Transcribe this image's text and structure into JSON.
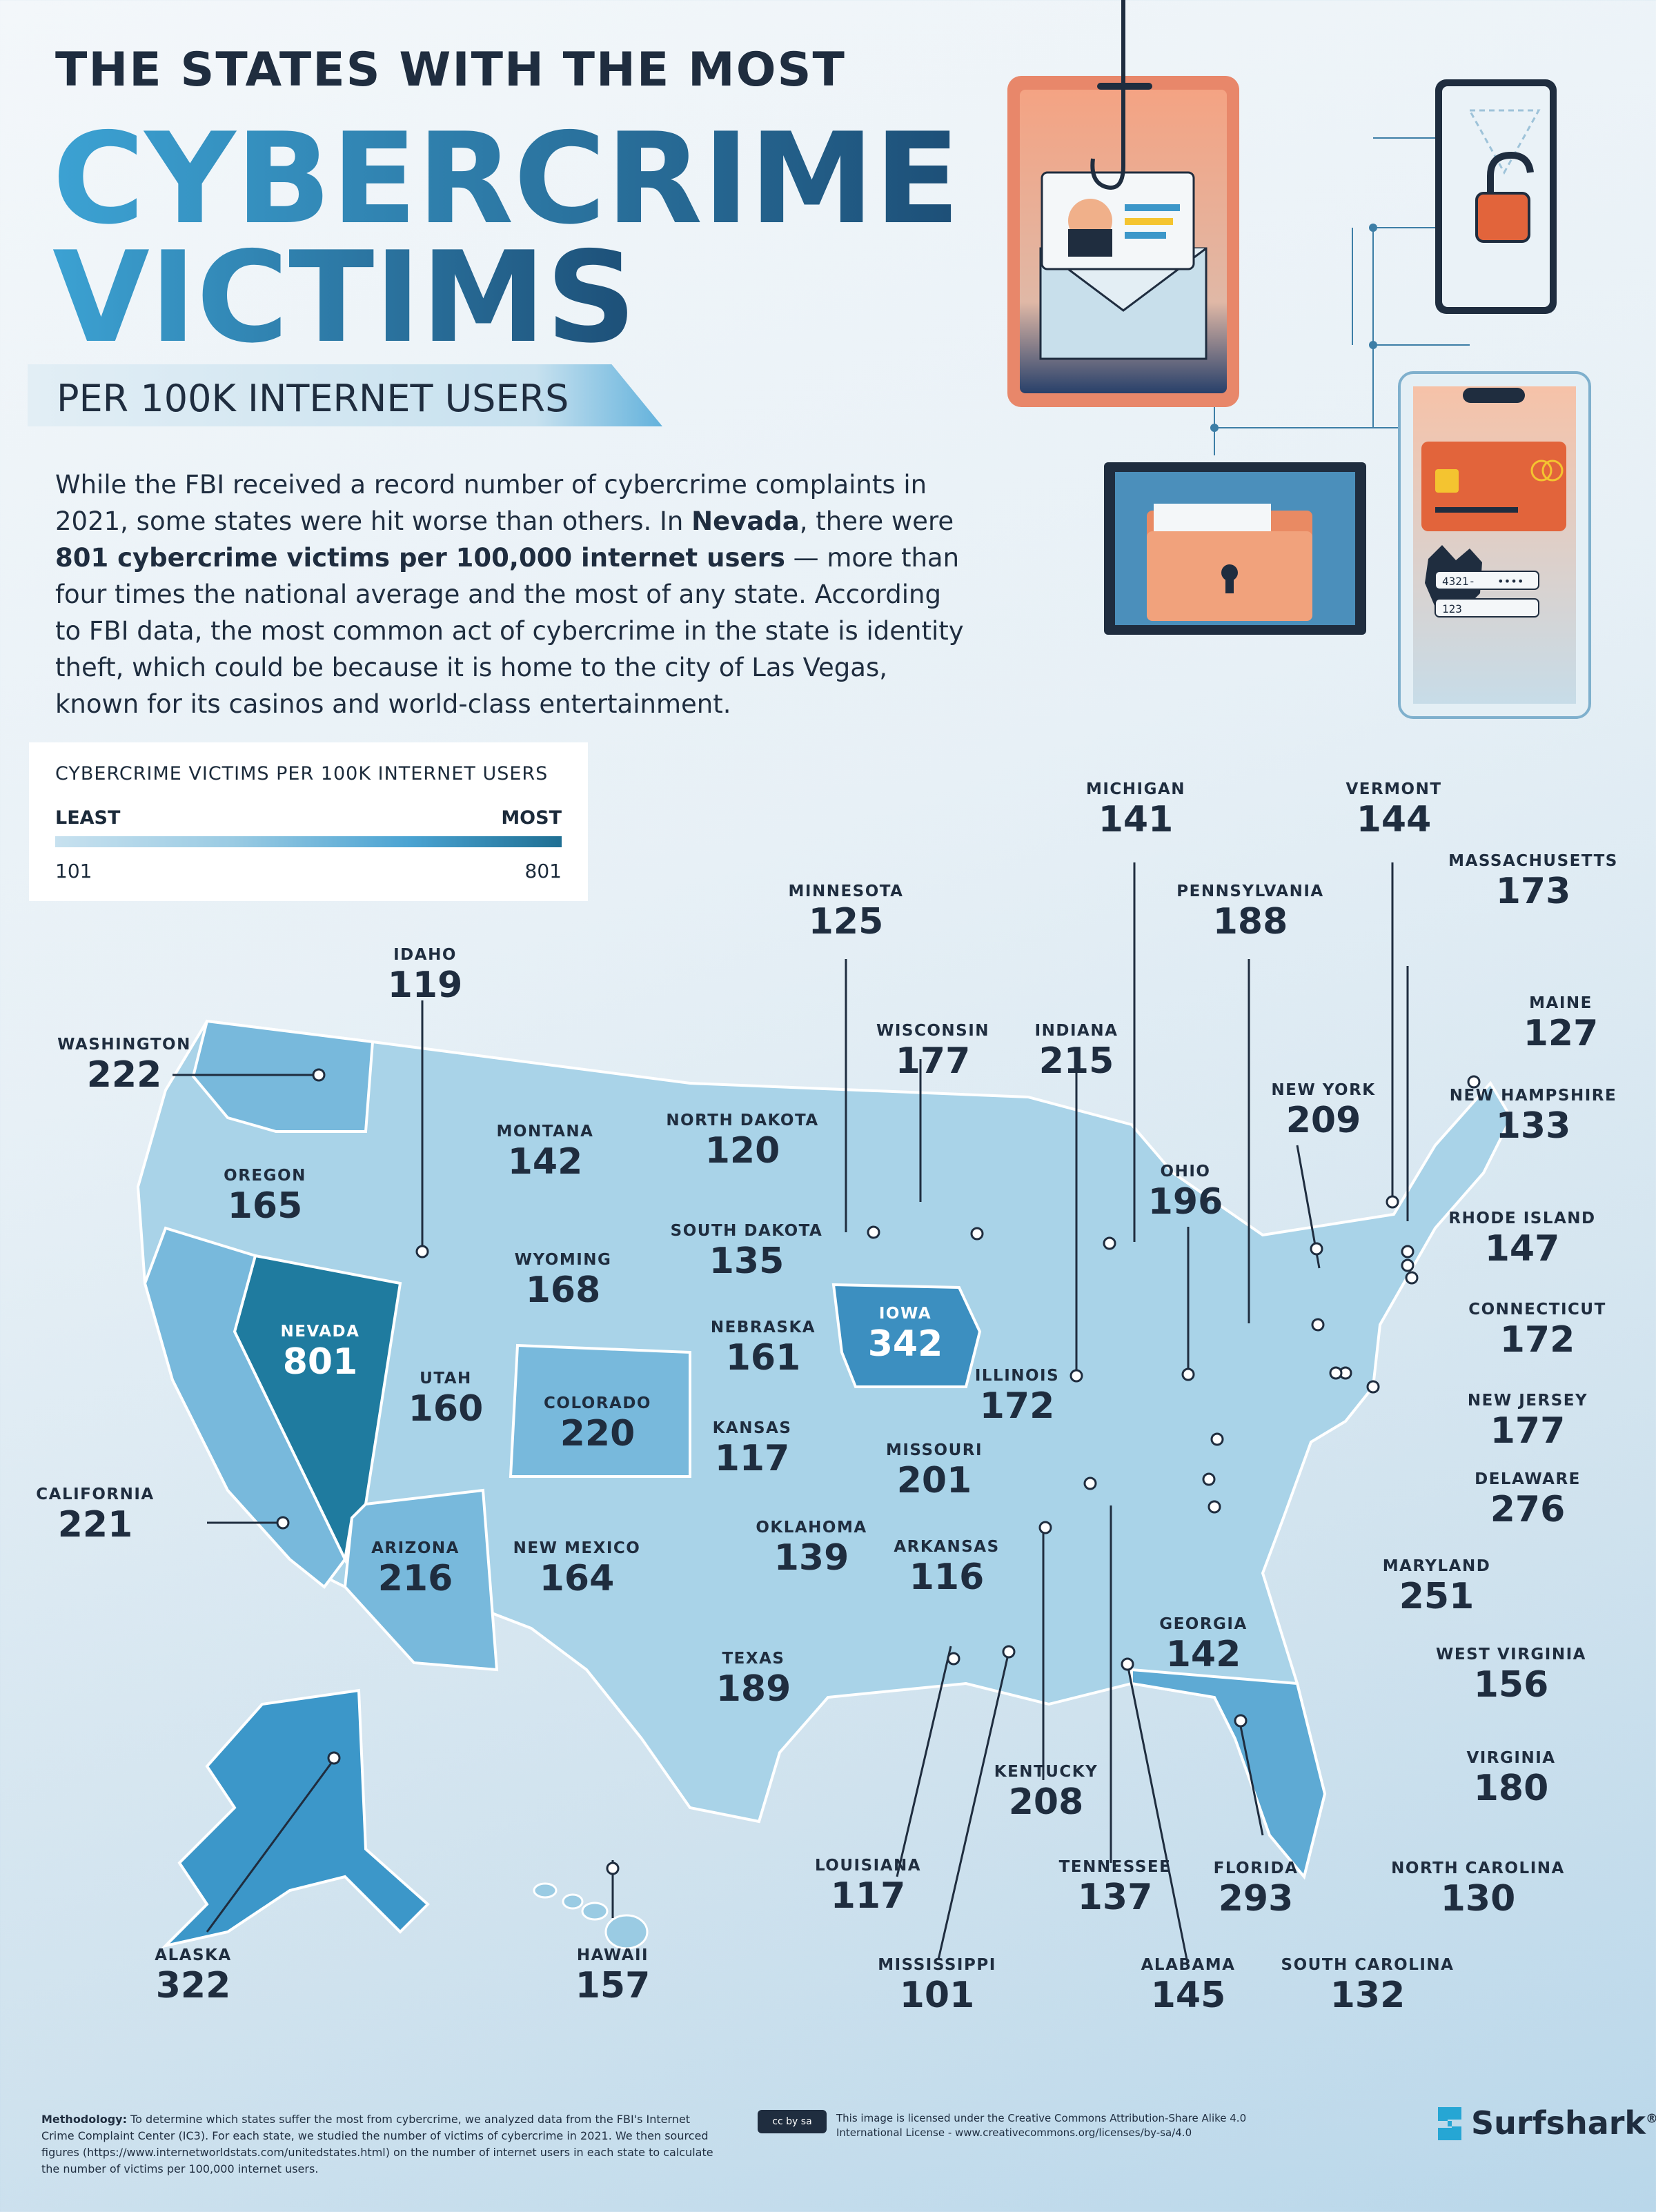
{
  "header": {
    "kicker": "THE STATES WITH THE MOST",
    "title_line1": "CYBERCRIME",
    "title_line2": "VICTIMS",
    "subtitle": "PER 100K INTERNET USERS"
  },
  "intro": {
    "part1": "While the FBI received a record number of cybercrime complaints in 2021, some states were hit worse than others. In ",
    "bold1": "Nevada",
    "part2": ", there were ",
    "bold2": "801 cybercrime victims per 100,000 internet users",
    "part3": " — more than four times the national average and the most of any state. According to FBI data, the most common act of cybercrime in the state is identity theft, which could be because it is home to the city of Las Vegas, known for its casinos and world-class entertainment."
  },
  "legend": {
    "title": "CYBERCRIME VICTIMS PER 100K INTERNET USERS",
    "least_label": "LEAST",
    "most_label": "MOST",
    "min": "101",
    "max": "801",
    "colors": [
      "#c7e1ef",
      "#9acbe3",
      "#4aa3d2",
      "#1f6f93"
    ]
  },
  "illustration": {
    "card_number": "4321-",
    "card_dots": "••••",
    "pin": "123"
  },
  "states": [
    {
      "id": "washington",
      "name": "WASHINGTON",
      "value": "222"
    },
    {
      "id": "oregon",
      "name": "OREGON",
      "value": "165"
    },
    {
      "id": "california",
      "name": "CALIFORNIA",
      "value": "221"
    },
    {
      "id": "nevada",
      "name": "NEVADA",
      "value": "801"
    },
    {
      "id": "idaho",
      "name": "IDAHO",
      "value": "119"
    },
    {
      "id": "montana",
      "name": "MONTANA",
      "value": "142"
    },
    {
      "id": "wyoming",
      "name": "WYOMING",
      "value": "168"
    },
    {
      "id": "utah",
      "name": "UTAH",
      "value": "160"
    },
    {
      "id": "colorado",
      "name": "COLORADO",
      "value": "220"
    },
    {
      "id": "arizona",
      "name": "ARIZONA",
      "value": "216"
    },
    {
      "id": "new-mexico",
      "name": "NEW MEXICO",
      "value": "164"
    },
    {
      "id": "north-dakota",
      "name": "NORTH DAKOTA",
      "value": "120"
    },
    {
      "id": "south-dakota",
      "name": "SOUTH DAKOTA",
      "value": "135"
    },
    {
      "id": "nebraska",
      "name": "NEBRASKA",
      "value": "161"
    },
    {
      "id": "kansas",
      "name": "KANSAS",
      "value": "117"
    },
    {
      "id": "oklahoma",
      "name": "OKLAHOMA",
      "value": "139"
    },
    {
      "id": "texas",
      "name": "TEXAS",
      "value": "189"
    },
    {
      "id": "minnesota",
      "name": "MINNESOTA",
      "value": "125"
    },
    {
      "id": "iowa",
      "name": "IOWA",
      "value": "342"
    },
    {
      "id": "missouri",
      "name": "MISSOURI",
      "value": "201"
    },
    {
      "id": "arkansas",
      "name": "ARKANSAS",
      "value": "116"
    },
    {
      "id": "louisiana",
      "name": "LOUISIANA",
      "value": "117"
    },
    {
      "id": "wisconsin",
      "name": "WISCONSIN",
      "value": "177"
    },
    {
      "id": "illinois",
      "name": "ILLINOIS",
      "value": "172"
    },
    {
      "id": "michigan",
      "name": "MICHIGAN",
      "value": "141"
    },
    {
      "id": "indiana",
      "name": "INDIANA",
      "value": "215"
    },
    {
      "id": "ohio",
      "name": "OHIO",
      "value": "196"
    },
    {
      "id": "kentucky",
      "name": "KENTUCKY",
      "value": "208"
    },
    {
      "id": "tennessee",
      "name": "TENNESSEE",
      "value": "137"
    },
    {
      "id": "mississippi",
      "name": "MISSISSIPPI",
      "value": "101"
    },
    {
      "id": "alabama",
      "name": "ALABAMA",
      "value": "145"
    },
    {
      "id": "georgia",
      "name": "GEORGIA",
      "value": "142"
    },
    {
      "id": "florida",
      "name": "FLORIDA",
      "value": "293"
    },
    {
      "id": "south-carolina",
      "name": "SOUTH CAROLINA",
      "value": "132"
    },
    {
      "id": "north-carolina",
      "name": "NORTH CAROLINA",
      "value": "130"
    },
    {
      "id": "virginia",
      "name": "VIRGINIA",
      "value": "180"
    },
    {
      "id": "west-virginia",
      "name": "WEST VIRGINIA",
      "value": "156"
    },
    {
      "id": "maryland",
      "name": "MARYLAND",
      "value": "251"
    },
    {
      "id": "delaware",
      "name": "DELAWARE",
      "value": "276"
    },
    {
      "id": "new-jersey",
      "name": "NEW JERSEY",
      "value": "177"
    },
    {
      "id": "pennsylvania",
      "name": "PENNSYLVANIA",
      "value": "188"
    },
    {
      "id": "new-york",
      "name": "NEW YORK",
      "value": "209"
    },
    {
      "id": "connecticut",
      "name": "CONNECTICUT",
      "value": "172"
    },
    {
      "id": "rhode-island",
      "name": "RHODE ISLAND",
      "value": "147"
    },
    {
      "id": "massachusetts",
      "name": "MASSACHUSETTS",
      "value": "173"
    },
    {
      "id": "vermont",
      "name": "VERMONT",
      "value": "144"
    },
    {
      "id": "new-hampshire",
      "name": "NEW HAMPSHIRE",
      "value": "133"
    },
    {
      "id": "maine",
      "name": "MAINE",
      "value": "127"
    },
    {
      "id": "alaska",
      "name": "ALASKA",
      "value": "322"
    },
    {
      "id": "hawaii",
      "name": "HAWAII",
      "value": "157"
    }
  ],
  "footer": {
    "methodology_label": "Methodology:",
    "methodology_text": " To determine which states suffer the most from cybercrime, we analyzed data from the FBI's Internet Crime Complaint Center (IC3). For each state, we studied the number of victims of cybercrime in 2021. We then sourced figures (https://www.internetworldstats.com/unitedstates.html) on the number of internet users in each state to calculate the number of victims per 100,000 internet users.",
    "cc_badge": "cc by sa",
    "license_text": "This image is licensed under the Creative Commons Attribution-Share Alike 4.0 International License - www.creativecommons.org/licenses/by-sa/4.0",
    "brand": "Surfshark",
    "brand_mark": "®"
  }
}
